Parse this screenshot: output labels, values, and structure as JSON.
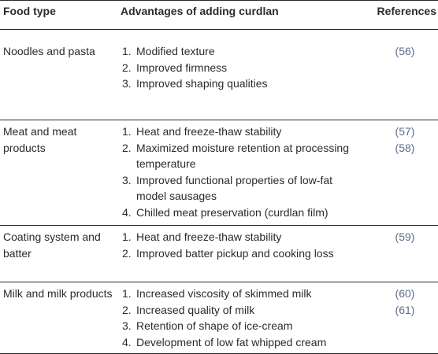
{
  "table": {
    "headers": {
      "food_type": "Food type",
      "advantages": "Advantages of adding curdlan",
      "references": "References"
    },
    "rows": [
      {
        "food_type": "Noodles and pasta",
        "advantages": [
          {
            "num": "1.",
            "text": "Modified texture"
          },
          {
            "num": "2.",
            "text": "Improved firmness"
          },
          {
            "num": "3.",
            "text": "Improved shaping qualities"
          }
        ],
        "references": [
          "(56)"
        ]
      },
      {
        "food_type": "Meat and meat products",
        "advantages": [
          {
            "num": "1.",
            "text": "Heat and freeze-thaw stability"
          },
          {
            "num": "2.",
            "text": "Maximized moisture retention at processing temperature"
          },
          {
            "num": "3.",
            "text": "Improved functional properties of low-fat model sausages"
          },
          {
            "num": "4.",
            "text": "Chilled meat preservation (curdlan film)"
          }
        ],
        "references": [
          "(57)",
          "(58)"
        ]
      },
      {
        "food_type": "Coating system and batter",
        "advantages": [
          {
            "num": "1.",
            "text": "Heat and freeze-thaw stability"
          },
          {
            "num": "2.",
            "text": "Improved batter pickup and cooking loss"
          }
        ],
        "references": [
          "(59)"
        ]
      },
      {
        "food_type": "Milk and milk products",
        "advantages": [
          {
            "num": "1.",
            "text": "Increased viscosity of skimmed milk"
          },
          {
            "num": "2.",
            "text": "Increased quality of milk"
          },
          {
            "num": "3.",
            "text": "Retention of shape of ice-cream"
          },
          {
            "num": "4.",
            "text": "Development of low fat whipped cream"
          }
        ],
        "references": [
          "(60)",
          "(61)"
        ]
      }
    ]
  }
}
